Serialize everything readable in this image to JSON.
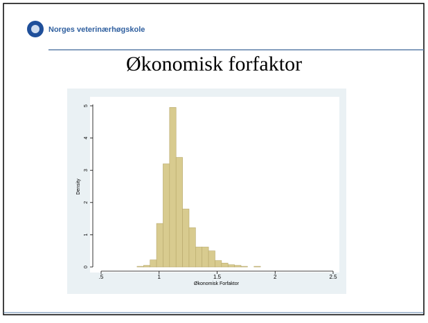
{
  "logo_text": "Norges veterinærhøgskole",
  "slide_title": "Økonomisk forfaktor",
  "chart_data": {
    "type": "histogram",
    "xlabel": "Økonomisk Forfaktor",
    "ylabel": "Density",
    "bins": [
      0.81,
      0.866,
      0.922,
      0.978,
      1.034,
      1.09,
      1.146,
      1.202,
      1.258,
      1.314,
      1.37,
      1.426,
      1.482,
      1.538,
      1.594,
      1.65,
      1.706,
      1.762,
      1.818,
      1.874
    ],
    "values": [
      0.02,
      0.05,
      0.22,
      1.35,
      3.2,
      4.95,
      3.4,
      1.8,
      1.22,
      0.62,
      0.62,
      0.5,
      0.2,
      0.12,
      0.07,
      0.05,
      0.02,
      0,
      0.02
    ],
    "color": "#d8cb8f",
    "xlim": [
      0.5,
      2.5
    ],
    "xticks": [
      {
        "value": 0.5,
        "label": ".5"
      },
      1,
      1.5,
      2,
      2.5
    ],
    "ylim": [
      0,
      5
    ],
    "yticks": [
      0,
      1,
      2,
      3,
      4,
      5
    ]
  }
}
